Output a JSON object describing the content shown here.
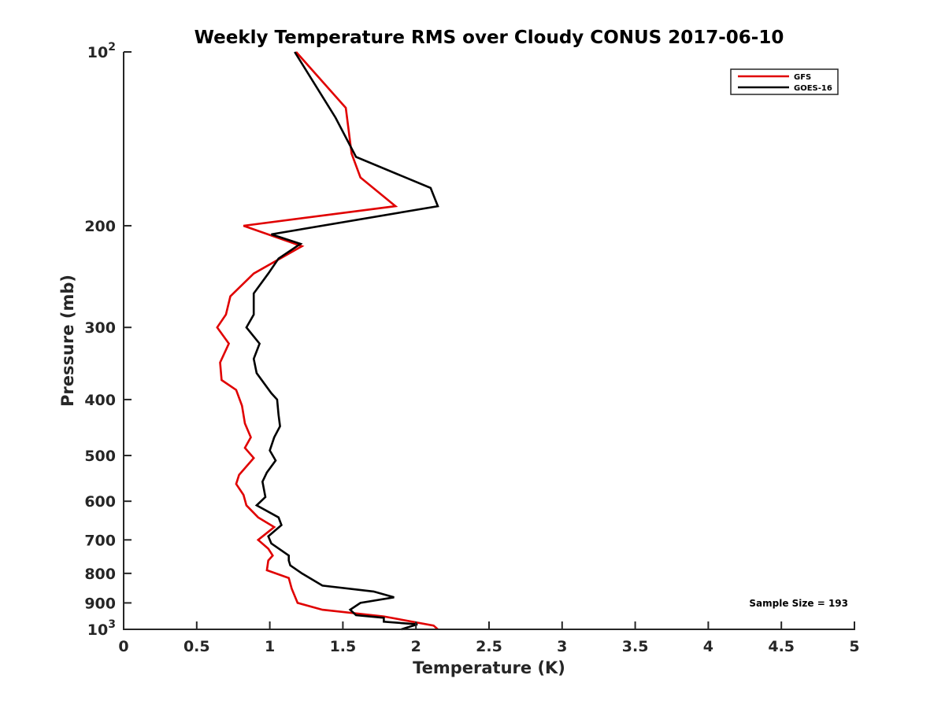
{
  "chart_data": {
    "type": "line",
    "title": "Weekly Temperature RMS over Cloudy CONUS 2017-06-10",
    "xlabel": "Temperature (K)",
    "ylabel": "Pressure (mb)",
    "xlim": [
      0,
      5
    ],
    "ylim": [
      100,
      1000
    ],
    "y_scale": "log",
    "y_reversed": true,
    "grid": false,
    "legend_position": "top-right",
    "x_ticks": [
      "0",
      "0.5",
      "1",
      "1.5",
      "2",
      "2.5",
      "3",
      "3.5",
      "4",
      "4.5",
      "5"
    ],
    "y_ticks": [
      {
        "value": 100,
        "label": "10",
        "sup": "2"
      },
      {
        "value": 200,
        "label": "200"
      },
      {
        "value": 300,
        "label": "300"
      },
      {
        "value": 400,
        "label": "400"
      },
      {
        "value": 500,
        "label": "500"
      },
      {
        "value": 600,
        "label": "600"
      },
      {
        "value": 700,
        "label": "700"
      },
      {
        "value": 800,
        "label": "800"
      },
      {
        "value": 900,
        "label": "900"
      },
      {
        "value": 1000,
        "label": "10",
        "sup": "3"
      }
    ],
    "series": [
      {
        "name": "GFS",
        "color": "#e00000",
        "points": [
          [
            1.18,
            100
          ],
          [
            1.52,
            125
          ],
          [
            1.56,
            150
          ],
          [
            1.62,
            165
          ],
          [
            1.86,
            185
          ],
          [
            0.82,
            200
          ],
          [
            1.22,
            217
          ],
          [
            0.89,
            242
          ],
          [
            0.73,
            265
          ],
          [
            0.7,
            285
          ],
          [
            0.64,
            300
          ],
          [
            0.72,
            320
          ],
          [
            0.66,
            345
          ],
          [
            0.67,
            370
          ],
          [
            0.77,
            385
          ],
          [
            0.81,
            410
          ],
          [
            0.83,
            440
          ],
          [
            0.87,
            465
          ],
          [
            0.83,
            485
          ],
          [
            0.89,
            505
          ],
          [
            0.79,
            540
          ],
          [
            0.77,
            560
          ],
          [
            0.82,
            585
          ],
          [
            0.84,
            610
          ],
          [
            0.92,
            640
          ],
          [
            1.03,
            665
          ],
          [
            0.92,
            700
          ],
          [
            0.99,
            725
          ],
          [
            1.02,
            745
          ],
          [
            0.99,
            760
          ],
          [
            0.98,
            790
          ],
          [
            1.13,
            815
          ],
          [
            1.15,
            850
          ],
          [
            1.19,
            900
          ],
          [
            1.36,
            925
          ],
          [
            1.78,
            950
          ],
          [
            2.12,
            985
          ],
          [
            2.15,
            1000
          ]
        ]
      },
      {
        "name": "GOES-16",
        "color": "#000000",
        "points": [
          [
            1.17,
            100
          ],
          [
            1.45,
            130
          ],
          [
            1.59,
            152
          ],
          [
            2.1,
            172
          ],
          [
            2.15,
            185
          ],
          [
            1.01,
            207
          ],
          [
            1.21,
            215
          ],
          [
            1.06,
            228
          ],
          [
            0.99,
            242
          ],
          [
            0.89,
            262
          ],
          [
            0.89,
            285
          ],
          [
            0.84,
            300
          ],
          [
            0.93,
            320
          ],
          [
            0.89,
            340
          ],
          [
            0.91,
            360
          ],
          [
            1.01,
            390
          ],
          [
            1.05,
            400
          ],
          [
            1.06,
            425
          ],
          [
            1.07,
            445
          ],
          [
            1.03,
            465
          ],
          [
            1.0,
            490
          ],
          [
            1.04,
            510
          ],
          [
            0.98,
            535
          ],
          [
            0.95,
            555
          ],
          [
            0.97,
            590
          ],
          [
            0.91,
            610
          ],
          [
            1.06,
            640
          ],
          [
            1.08,
            660
          ],
          [
            0.99,
            690
          ],
          [
            1.01,
            710
          ],
          [
            1.13,
            745
          ],
          [
            1.13,
            760
          ],
          [
            1.14,
            775
          ],
          [
            1.22,
            800
          ],
          [
            1.36,
            840
          ],
          [
            1.71,
            860
          ],
          [
            1.85,
            880
          ],
          [
            1.62,
            900
          ],
          [
            1.55,
            925
          ],
          [
            1.59,
            945
          ],
          [
            1.78,
            955
          ],
          [
            1.78,
            970
          ],
          [
            2.01,
            980
          ],
          [
            1.9,
            1000
          ]
        ]
      }
    ],
    "annotation": "Sample Size = 193"
  }
}
